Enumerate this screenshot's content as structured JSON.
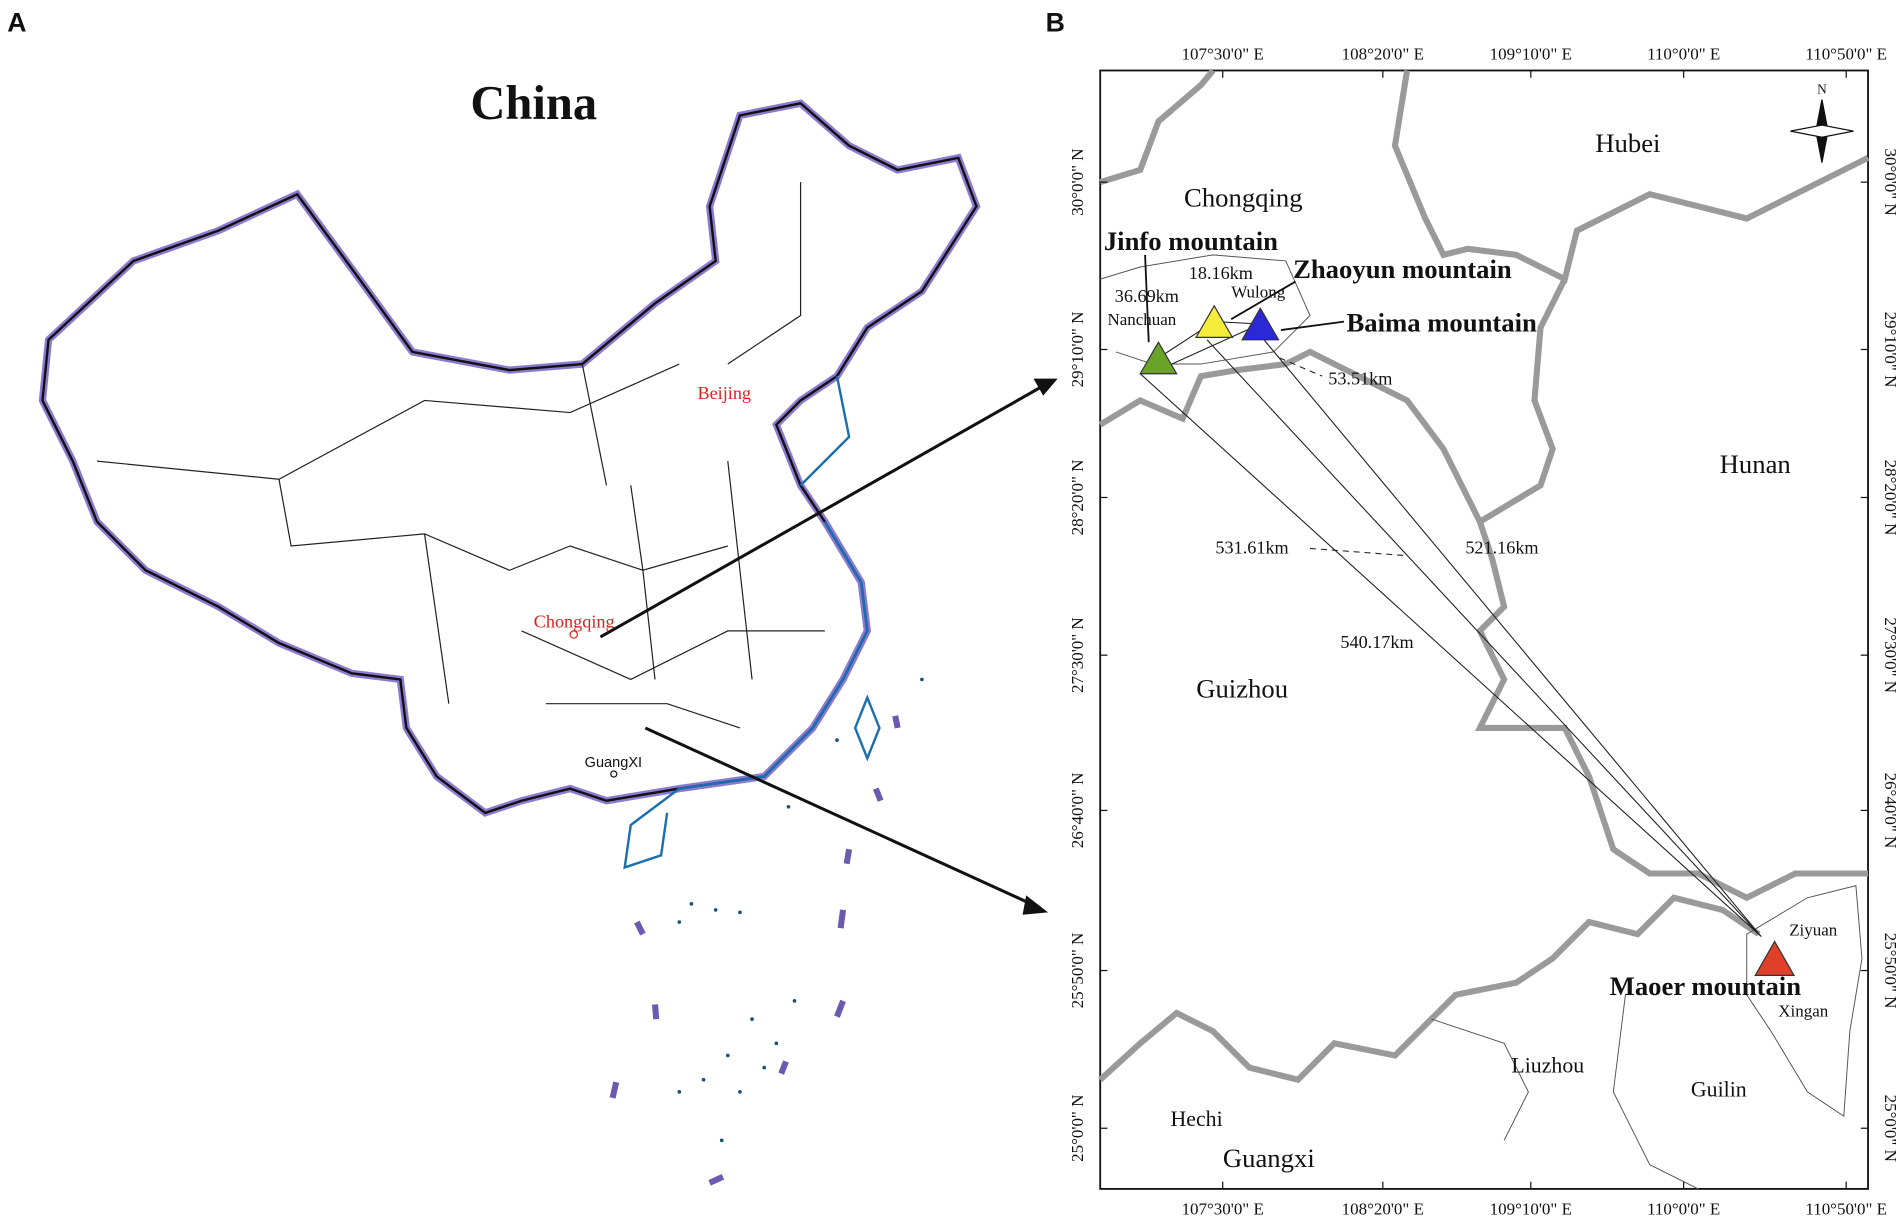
{
  "panel_a": {
    "label": "A",
    "title": "China",
    "cities": [
      "Beijing",
      "Chongqing",
      "GuangXI"
    ]
  },
  "panel_b": {
    "label": "B",
    "lon_labels": [
      "107°30'0\" E",
      "108°20'0\" E",
      "109°10'0\" E",
      "110°0'0\" E",
      "110°50'0\" E"
    ],
    "lat_labels": [
      "30°0'0\" N",
      "29°10'0\" N",
      "28°20'0\" N",
      "27°30'0\" N",
      "26°40'0\" N",
      "25°50'0\" N",
      "25°0'0\" N"
    ],
    "north": "N",
    "regions": [
      "Hubei",
      "Chongqing",
      "Hunan",
      "Guizhou",
      "Guangxi"
    ],
    "places": [
      "Nanchuan",
      "Wulong",
      "Ziyuan",
      "Xingan",
      "Hechi",
      "Liuzhou",
      "Guilin"
    ],
    "mountains": [
      "Jinfo mountain",
      "Zhaoyun mountain",
      "Baima mountain",
      "Maoer mountain"
    ],
    "distances": [
      "36.69km",
      "18.16km",
      "53.51km",
      "531.61km",
      "521.16km",
      "540.17km"
    ]
  }
}
